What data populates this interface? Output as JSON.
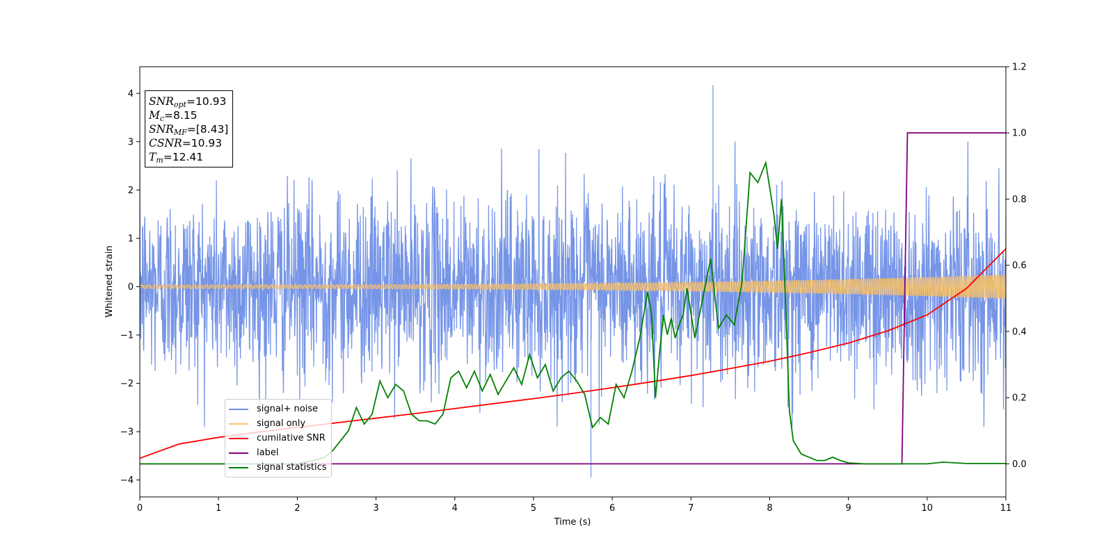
{
  "chart_data": {
    "type": "line",
    "xlabel": "Time (s)",
    "ylabel": "Whitened strain",
    "xlim": [
      0,
      11
    ],
    "ylim_left": [
      -4.35,
      4.55
    ],
    "ylim_right": [
      -0.1,
      1.2
    ],
    "xticks": [
      "0",
      "1",
      "2",
      "3",
      "4",
      "5",
      "6",
      "7",
      "8",
      "9",
      "10",
      "11"
    ],
    "yticks_left": [
      "−4",
      "−3",
      "−2",
      "−1",
      "0",
      "1",
      "2",
      "3",
      "4"
    ],
    "yticks_right": [
      "0.0",
      "0.2",
      "0.4",
      "0.6",
      "0.8",
      "1.0",
      "1.2"
    ],
    "legend_position": "lower-left",
    "stats": {
      "snr_opt": "=10.93",
      "mc": "=8.15",
      "snr_mf": "=[8.43]",
      "csnr": "=10.93",
      "tm": "=12.41"
    },
    "series": [
      {
        "name": "signal+ noise",
        "color": "#6f8fe6",
        "axis": "left",
        "description_values": {
          "band_low": -2.3,
          "band_high": 2.4,
          "max_spike": 4.17,
          "min_spike": -3.95
        }
      },
      {
        "name": "signal only",
        "color": "#f5c36b",
        "axis": "left",
        "amplitude_start": 0.04,
        "amplitude_end": 0.25
      },
      {
        "name": "cumilative SNR",
        "color": "#ff0000",
        "axis": "right",
        "x": [
          0,
          0.5,
          1,
          1.5,
          2,
          2.5,
          3,
          3.5,
          4,
          4.5,
          5,
          5.5,
          6,
          6.5,
          7,
          7.5,
          8,
          8.5,
          9,
          9.5,
          10,
          10.5,
          11
        ],
        "y": [
          0.017,
          0.06,
          0.08,
          0.096,
          0.11,
          0.124,
          0.138,
          0.152,
          0.167,
          0.182,
          0.197,
          0.213,
          0.23,
          0.248,
          0.267,
          0.288,
          0.31,
          0.336,
          0.365,
          0.402,
          0.45,
          0.53,
          0.65
        ]
      },
      {
        "name": "label",
        "color": "#800080",
        "axis": "right",
        "x": [
          0,
          9.68,
          9.75,
          11
        ],
        "y": [
          0.0,
          0.0,
          1.0,
          1.0
        ]
      },
      {
        "name": "signal statistics",
        "color": "#008000",
        "axis": "right",
        "x": [
          0,
          0.5,
          1,
          1.5,
          2,
          2.2,
          2.35,
          2.45,
          2.55,
          2.65,
          2.75,
          2.85,
          2.95,
          3.05,
          3.15,
          3.25,
          3.35,
          3.45,
          3.55,
          3.65,
          3.75,
          3.85,
          3.95,
          4.05,
          4.15,
          4.25,
          4.35,
          4.45,
          4.55,
          4.65,
          4.75,
          4.85,
          4.95,
          5.05,
          5.15,
          5.25,
          5.35,
          5.45,
          5.55,
          5.65,
          5.75,
          5.85,
          5.95,
          6.05,
          6.15,
          6.25,
          6.35,
          6.45,
          6.5,
          6.55,
          6.6,
          6.65,
          6.7,
          6.75,
          6.8,
          6.85,
          6.9,
          6.95,
          7.05,
          7.15,
          7.25,
          7.35,
          7.45,
          7.55,
          7.65,
          7.75,
          7.85,
          7.95,
          8.05,
          8.1,
          8.15,
          8.2,
          8.25,
          8.3,
          8.4,
          8.5,
          8.6,
          8.7,
          8.8,
          8.9,
          9.0,
          9.2,
          9.4,
          9.7,
          10.0,
          10.2,
          10.5,
          11
        ],
        "y": [
          0.0,
          0.0,
          0.0,
          0.0,
          0.0,
          0.01,
          0.02,
          0.04,
          0.07,
          0.1,
          0.17,
          0.12,
          0.15,
          0.25,
          0.2,
          0.24,
          0.22,
          0.15,
          0.13,
          0.13,
          0.12,
          0.15,
          0.26,
          0.28,
          0.23,
          0.28,
          0.22,
          0.27,
          0.21,
          0.25,
          0.29,
          0.24,
          0.33,
          0.26,
          0.3,
          0.22,
          0.26,
          0.28,
          0.25,
          0.21,
          0.11,
          0.14,
          0.12,
          0.24,
          0.2,
          0.28,
          0.38,
          0.52,
          0.45,
          0.2,
          0.33,
          0.45,
          0.39,
          0.44,
          0.38,
          0.42,
          0.45,
          0.53,
          0.38,
          0.5,
          0.62,
          0.41,
          0.45,
          0.42,
          0.55,
          0.88,
          0.85,
          0.91,
          0.76,
          0.65,
          0.8,
          0.5,
          0.16,
          0.07,
          0.03,
          0.02,
          0.01,
          0.01,
          0.02,
          0.01,
          0.003,
          0.0,
          0.0,
          0.0,
          0.0,
          0.005,
          0.001,
          0.001
        ]
      }
    ]
  }
}
